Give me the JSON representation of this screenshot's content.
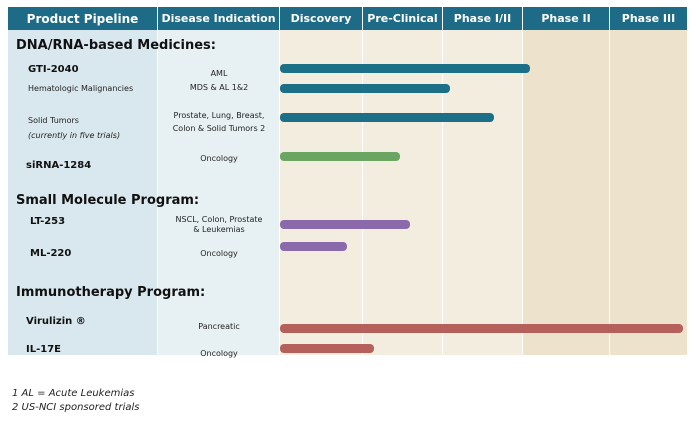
{
  "header": {
    "product": "Product Pipeline",
    "indication": "Disease Indication",
    "stages": [
      "Discovery",
      "Pre-Clinical",
      "Phase I/II",
      "Phase II",
      "Phase III"
    ]
  },
  "colors": {
    "header": "#1d6b86",
    "teal": "#1b6f87",
    "green": "#6aa662",
    "purple": "#8a6aaa",
    "red": "#b5605a"
  },
  "sections": [
    "DNA/RNA-based Medicines:",
    "Small Molecule Program:",
    "Immunotherapy Program:"
  ],
  "rows": [
    {
      "product": "GTI-2040",
      "indication": "AML",
      "progress_stages": 3.08,
      "color": "teal"
    },
    {
      "product": "Hematologic Malignancies",
      "indication": "MDS & AL 1&2",
      "progress_stages": 2.09,
      "color": "teal"
    },
    {
      "product": "Solid Tumors",
      "sub": "(currently in five trials)",
      "indication": "Prostate, Lung, Breast,",
      "indication2": "Colon & Solid Tumors 2",
      "progress_stages": 2.64,
      "color": "teal"
    },
    {
      "product": "siRNA-1284",
      "indication": "Oncology",
      "progress_stages": 1.46,
      "color": "green"
    },
    {
      "product": "LT-253",
      "indication": "NSCL, Colon, Prostate",
      "indication2": "& Leukemias",
      "progress_stages": 1.59,
      "color": "purple"
    },
    {
      "product": "ML-220",
      "indication": "Oncology",
      "progress_stages": 0.81,
      "color": "purple"
    },
    {
      "product": "Virulizin ®",
      "indication": "Pancreatic",
      "progress_stages": 4.94,
      "color": "red"
    },
    {
      "product": "IL-17E",
      "indication": "Oncology",
      "progress_stages": 1.14,
      "color": "red"
    }
  ],
  "footnotes": [
    "1 AL = Acute Leukemias",
    "2 US-NCI sponsored trials"
  ]
}
